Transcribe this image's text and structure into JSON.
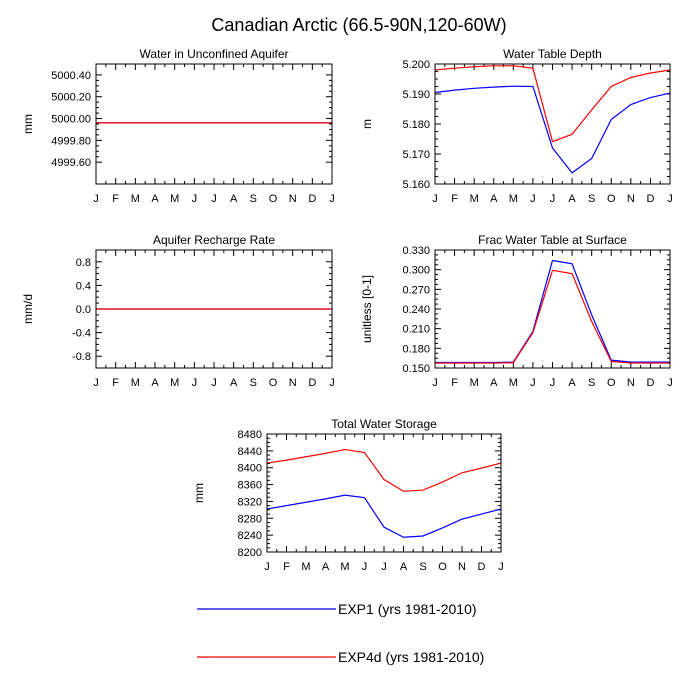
{
  "page": {
    "title": "Canadian Arctic (66.5-90N,120-60W)"
  },
  "legend": [
    {
      "label": "EXP1 (yrs 1981-2010)",
      "color": "#0000ff"
    },
    {
      "label": "EXP4d (yrs 1981-2010)",
      "color": "#ff0000"
    }
  ],
  "chart_data": [
    {
      "type": "line",
      "title": "Water in Unconfined Aquifer",
      "ylabel": "mm",
      "xlabel": "",
      "categories": [
        "J",
        "F",
        "M",
        "A",
        "M",
        "J",
        "J",
        "A",
        "S",
        "O",
        "N",
        "D",
        "J"
      ],
      "ylim": [
        4999.4,
        5000.5
      ],
      "yticks": [
        4999.6,
        4999.8,
        5000.0,
        5000.2,
        5000.4
      ],
      "ytick_labels": [
        "4999.60",
        "4999.80",
        "5000.00",
        "5000.20",
        "5000.40"
      ],
      "series": [
        {
          "name": "EXP1 (yrs 1981-2010)",
          "color": "#0000ff",
          "values": [
            4999.96,
            4999.96,
            4999.96,
            4999.96,
            4999.96,
            4999.96,
            4999.96,
            4999.96,
            4999.96,
            4999.96,
            4999.96,
            4999.96,
            4999.96
          ]
        },
        {
          "name": "EXP4d (yrs 1981-2010)",
          "color": "#ff0000",
          "values": [
            4999.96,
            4999.96,
            4999.96,
            4999.96,
            4999.96,
            4999.96,
            4999.96,
            4999.96,
            4999.96,
            4999.96,
            4999.96,
            4999.96,
            4999.96
          ]
        }
      ]
    },
    {
      "type": "line",
      "title": "Water Table Depth",
      "ylabel": "m",
      "xlabel": "",
      "categories": [
        "J",
        "F",
        "M",
        "A",
        "M",
        "J",
        "J",
        "A",
        "S",
        "O",
        "N",
        "D",
        "J"
      ],
      "ylim": [
        5.16,
        5.2
      ],
      "yticks": [
        5.16,
        5.17,
        5.18,
        5.19,
        5.2
      ],
      "ytick_labels": [
        "5.160",
        "5.170",
        "5.180",
        "5.190",
        "5.200"
      ],
      "series": [
        {
          "name": "EXP1 (yrs 1981-2010)",
          "color": "#0000ff",
          "values": [
            5.1905,
            5.1913,
            5.1919,
            5.1923,
            5.1926,
            5.1925,
            5.172,
            5.1637,
            5.1685,
            5.1815,
            5.1865,
            5.1888,
            5.1903
          ]
        },
        {
          "name": "EXP4d (yrs 1981-2010)",
          "color": "#ff0000",
          "values": [
            5.198,
            5.1986,
            5.1991,
            5.1994,
            5.1994,
            5.1986,
            5.1741,
            5.1766,
            5.1847,
            5.1925,
            5.1955,
            5.197,
            5.198
          ]
        }
      ]
    },
    {
      "type": "line",
      "title": "Aquifer Recharge Rate",
      "ylabel": "mm/d",
      "xlabel": "",
      "categories": [
        "J",
        "F",
        "M",
        "A",
        "M",
        "J",
        "J",
        "A",
        "S",
        "O",
        "N",
        "D",
        "J"
      ],
      "ylim": [
        -1.0,
        1.0
      ],
      "yticks": [
        -0.8,
        -0.4,
        0.0,
        0.4,
        0.8
      ],
      "ytick_labels": [
        "-0.8",
        "-0.4",
        "0.0",
        "0.4",
        "0.8"
      ],
      "series": [
        {
          "name": "EXP1 (yrs 1981-2010)",
          "color": "#0000ff",
          "values": [
            0,
            0,
            0,
            0,
            0,
            0,
            0,
            0,
            0,
            0,
            0,
            0,
            0
          ]
        },
        {
          "name": "EXP4d (yrs 1981-2010)",
          "color": "#ff0000",
          "values": [
            0,
            0,
            0,
            0,
            0,
            0,
            0,
            0,
            0,
            0,
            0,
            0,
            0
          ]
        }
      ]
    },
    {
      "type": "line",
      "title": "Frac Water Table at Surface",
      "ylabel": "unitless [0-1]",
      "xlabel": "",
      "categories": [
        "J",
        "F",
        "M",
        "A",
        "M",
        "J",
        "J",
        "A",
        "S",
        "O",
        "N",
        "D",
        "J"
      ],
      "ylim": [
        0.15,
        0.33
      ],
      "yticks": [
        0.15,
        0.18,
        0.21,
        0.24,
        0.27,
        0.3,
        0.33
      ],
      "ytick_labels": [
        "0.150",
        "0.180",
        "0.210",
        "0.240",
        "0.270",
        "0.300",
        "0.330"
      ],
      "series": [
        {
          "name": "EXP1 (yrs 1981-2010)",
          "color": "#0000ff",
          "values": [
            0.1585,
            0.1585,
            0.1585,
            0.1585,
            0.159,
            0.206,
            0.314,
            0.309,
            0.231,
            0.162,
            0.159,
            0.159,
            0.159
          ]
        },
        {
          "name": "EXP4d (yrs 1981-2010)",
          "color": "#ff0000",
          "values": [
            0.1575,
            0.1575,
            0.1575,
            0.1575,
            0.158,
            0.204,
            0.299,
            0.294,
            0.221,
            0.16,
            0.1575,
            0.1575,
            0.1575
          ]
        }
      ]
    },
    {
      "type": "line",
      "title": "Total Water Storage",
      "ylabel": "mm",
      "xlabel": "",
      "categories": [
        "J",
        "F",
        "M",
        "A",
        "M",
        "J",
        "J",
        "A",
        "S",
        "O",
        "N",
        "D",
        "J"
      ],
      "ylim": [
        8200,
        8480
      ],
      "yticks": [
        8200,
        8240,
        8280,
        8320,
        8360,
        8400,
        8440,
        8480
      ],
      "ytick_labels": [
        "8200",
        "8240",
        "8280",
        "8320",
        "8360",
        "8400",
        "8440",
        "8480"
      ],
      "series": [
        {
          "name": "EXP1 (yrs 1981-2010)",
          "color": "#0000ff",
          "values": [
            8302,
            8310,
            8318,
            8326,
            8335,
            8329,
            8259,
            8235,
            8238,
            8257,
            8278,
            8290,
            8302
          ]
        },
        {
          "name": "EXP4d (yrs 1981-2010)",
          "color": "#ff0000",
          "values": [
            8411,
            8418,
            8426,
            8434,
            8443,
            8436,
            8372,
            8344,
            8347,
            8366,
            8388,
            8399,
            8411
          ]
        }
      ]
    }
  ]
}
